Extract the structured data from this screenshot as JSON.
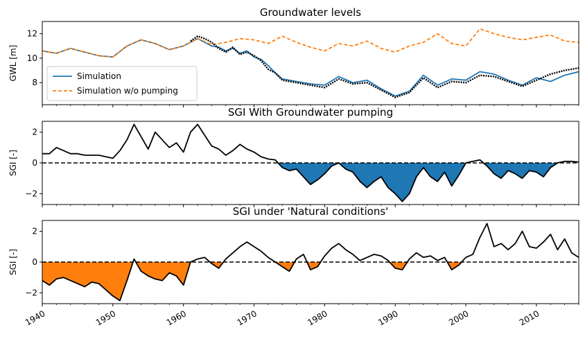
{
  "chart_data": [
    {
      "type": "line",
      "title": "Groundwater levels",
      "ylabel": "GWL [m]",
      "xlim": [
        1940,
        2016
      ],
      "ylim": [
        6.2,
        13.0
      ],
      "yticks": [
        8,
        10,
        12
      ],
      "legend": {
        "placement": "lower-left"
      },
      "series": [
        {
          "name": "Simulation",
          "color": "#1f77b4",
          "style": "solid",
          "x": [
            1940,
            1942,
            1944,
            1946,
            1948,
            1950,
            1952,
            1954,
            1956,
            1958,
            1960,
            1962,
            1964,
            1965,
            1966,
            1967,
            1968,
            1969,
            1970,
            1971,
            1972,
            1973,
            1974,
            1976,
            1978,
            1980,
            1982,
            1984,
            1986,
            1988,
            1990,
            1992,
            1994,
            1996,
            1998,
            2000,
            2002,
            2004,
            2006,
            2008,
            2010,
            2012,
            2014,
            2016
          ],
          "y": [
            10.6,
            10.4,
            10.8,
            10.5,
            10.2,
            10.1,
            11.0,
            11.5,
            11.2,
            10.7,
            11.0,
            11.6,
            11.0,
            10.9,
            10.6,
            10.8,
            10.4,
            10.6,
            10.1,
            9.9,
            9.4,
            8.8,
            8.3,
            8.1,
            7.9,
            7.8,
            8.5,
            8.0,
            8.2,
            7.5,
            6.9,
            7.3,
            8.6,
            7.8,
            8.3,
            8.2,
            8.9,
            8.7,
            8.2,
            7.8,
            8.4,
            8.1,
            8.6,
            8.9
          ]
        },
        {
          "name": "Simulation w/o pumping",
          "color": "#ff7f0e",
          "style": "dashed",
          "x": [
            1940,
            1942,
            1944,
            1946,
            1948,
            1950,
            1952,
            1954,
            1956,
            1958,
            1960,
            1962,
            1964,
            1966,
            1968,
            1970,
            1972,
            1974,
            1976,
            1978,
            1980,
            1982,
            1984,
            1986,
            1988,
            1990,
            1992,
            1994,
            1996,
            1998,
            2000,
            2002,
            2004,
            2006,
            2008,
            2010,
            2012,
            2014,
            2016
          ],
          "y": [
            10.6,
            10.4,
            10.8,
            10.5,
            10.2,
            10.1,
            11.0,
            11.5,
            11.2,
            10.7,
            11.0,
            11.6,
            11.1,
            11.3,
            11.6,
            11.5,
            11.2,
            11.8,
            11.3,
            10.9,
            10.6,
            11.2,
            11.0,
            11.4,
            10.8,
            10.5,
            11.0,
            11.3,
            12.0,
            11.2,
            11.0,
            12.4,
            12.0,
            11.7,
            11.5,
            11.7,
            11.9,
            11.4,
            11.3
          ]
        },
        {
          "name": "",
          "color": "#000000",
          "style": "dotted",
          "x": [
            1961,
            1962,
            1963,
            1964,
            1965,
            1966,
            1967,
            1968,
            1969,
            1970,
            1971,
            1972,
            1973,
            1974,
            1976,
            1978,
            1980,
            1982,
            1984,
            1986,
            1988,
            1990,
            1992,
            1994,
            1996,
            1998,
            2000,
            2002,
            2004,
            2006,
            2008,
            2010,
            2012,
            2014,
            2016
          ],
          "y": [
            11.4,
            11.8,
            11.6,
            11.3,
            10.8,
            10.5,
            10.9,
            10.3,
            10.5,
            10.2,
            9.8,
            9.1,
            8.8,
            8.2,
            8.0,
            7.8,
            7.6,
            8.3,
            7.9,
            8.0,
            7.4,
            6.8,
            7.2,
            8.4,
            7.6,
            8.1,
            8.0,
            8.6,
            8.5,
            8.1,
            7.7,
            8.2,
            8.7,
            9.0,
            9.2
          ]
        }
      ]
    },
    {
      "type": "area",
      "title": "SGI With Groundwater pumping",
      "ylabel": "SGI [-]",
      "xlim": [
        1940,
        2016
      ],
      "ylim": [
        -2.7,
        2.7
      ],
      "yticks": [
        -2,
        0,
        2
      ],
      "fill_color": "#1f77b4",
      "x": [
        1940,
        1941,
        1942,
        1943,
        1944,
        1945,
        1946,
        1947,
        1948,
        1949,
        1950,
        1951,
        1952,
        1953,
        1954,
        1955,
        1956,
        1957,
        1958,
        1959,
        1960,
        1961,
        1962,
        1963,
        1964,
        1965,
        1966,
        1967,
        1968,
        1969,
        1970,
        1971,
        1972,
        1973,
        1974,
        1975,
        1976,
        1977,
        1978,
        1979,
        1980,
        1981,
        1982,
        1983,
        1984,
        1985,
        1986,
        1987,
        1988,
        1989,
        1990,
        1991,
        1992,
        1993,
        1994,
        1995,
        1996,
        1997,
        1998,
        1999,
        2000,
        2001,
        2002,
        2003,
        2004,
        2005,
        2006,
        2007,
        2008,
        2009,
        2010,
        2011,
        2012,
        2013,
        2014,
        2015,
        2016
      ],
      "values": [
        0.6,
        0.6,
        1.0,
        0.8,
        0.6,
        0.6,
        0.5,
        0.5,
        0.5,
        0.4,
        0.3,
        0.8,
        1.5,
        2.5,
        1.7,
        0.9,
        2.0,
        1.5,
        1.0,
        1.3,
        0.7,
        2.0,
        2.5,
        1.8,
        1.1,
        0.9,
        0.5,
        0.8,
        1.2,
        0.9,
        0.7,
        0.4,
        0.25,
        0.2,
        -0.3,
        -0.5,
        -0.4,
        -0.9,
        -1.4,
        -1.1,
        -0.7,
        -0.2,
        0.0,
        -0.4,
        -0.6,
        -1.2,
        -1.6,
        -1.2,
        -0.9,
        -1.6,
        -2.0,
        -2.5,
        -2.0,
        -0.9,
        -0.3,
        -0.9,
        -1.2,
        -0.6,
        -1.5,
        -0.8,
        0.0,
        0.1,
        0.2,
        -0.2,
        -0.7,
        -1.0,
        -0.5,
        -0.7,
        -1.0,
        -0.5,
        -0.6,
        -0.9,
        -0.3,
        0.0,
        0.1,
        0.1,
        0.05
      ]
    },
    {
      "type": "area",
      "title": "SGI under 'Natural conditions'",
      "ylabel": "SGI [-]",
      "xlim": [
        1940,
        2016
      ],
      "ylim": [
        -2.7,
        2.7
      ],
      "yticks": [
        -2,
        0,
        2
      ],
      "xticks": [
        1940,
        1950,
        1960,
        1970,
        1980,
        1990,
        2000,
        2010
      ],
      "fill_color": "#ff7f0e",
      "x": [
        1940,
        1941,
        1942,
        1943,
        1944,
        1945,
        1946,
        1947,
        1948,
        1949,
        1950,
        1951,
        1952,
        1953,
        1954,
        1955,
        1956,
        1957,
        1958,
        1959,
        1960,
        1961,
        1962,
        1963,
        1964,
        1965,
        1966,
        1967,
        1968,
        1969,
        1970,
        1971,
        1972,
        1973,
        1974,
        1975,
        1976,
        1977,
        1978,
        1979,
        1980,
        1981,
        1982,
        1983,
        1984,
        1985,
        1986,
        1987,
        1988,
        1989,
        1990,
        1991,
        1992,
        1993,
        1994,
        1995,
        1996,
        1997,
        1998,
        1999,
        2000,
        2001,
        2002,
        2003,
        2004,
        2005,
        2006,
        2007,
        2008,
        2009,
        2010,
        2011,
        2012,
        2013,
        2014,
        2015,
        2016
      ],
      "values": [
        -1.2,
        -1.5,
        -1.1,
        -1.0,
        -1.2,
        -1.4,
        -1.6,
        -1.3,
        -1.4,
        -1.8,
        -2.2,
        -2.5,
        -1.2,
        0.2,
        -0.6,
        -0.9,
        -1.1,
        -1.2,
        -0.7,
        -0.9,
        -1.5,
        0.0,
        0.2,
        0.3,
        -0.1,
        -0.4,
        0.2,
        0.6,
        1.0,
        1.3,
        1.0,
        0.7,
        0.3,
        0.0,
        -0.3,
        -0.6,
        0.2,
        0.5,
        -0.5,
        -0.3,
        0.4,
        0.9,
        1.2,
        0.8,
        0.5,
        0.1,
        0.3,
        0.5,
        0.4,
        0.1,
        -0.4,
        -0.5,
        0.2,
        0.6,
        0.3,
        0.4,
        0.1,
        0.3,
        -0.5,
        -0.2,
        0.3,
        0.5,
        1.6,
        2.5,
        1.0,
        1.2,
        0.8,
        1.2,
        2.0,
        1.0,
        0.9,
        1.3,
        1.8,
        0.8,
        1.5,
        0.6,
        0.3
      ]
    }
  ]
}
